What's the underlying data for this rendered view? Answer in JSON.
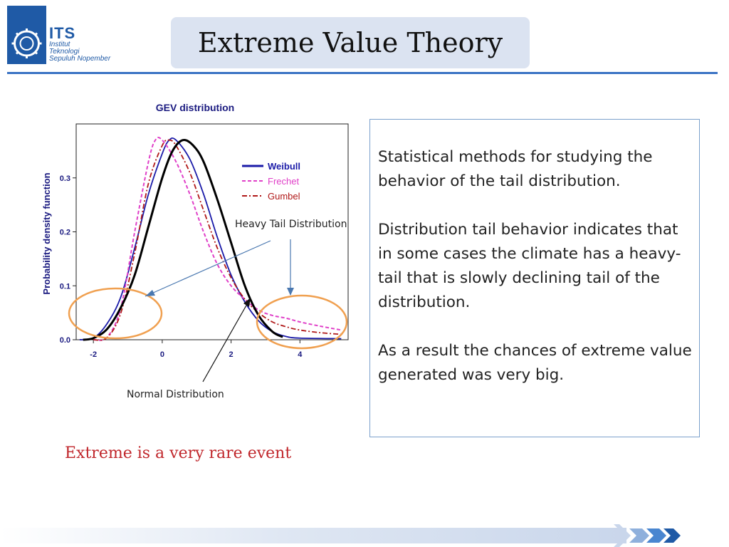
{
  "header": {
    "logo_short": "ITS",
    "logo_lines": [
      "Institut",
      "Teknologi",
      "Sepuluh Nopember"
    ],
    "title": "Extreme Value Theory"
  },
  "annotations": {
    "heavy_tail": "Heavy  Tail Distribution",
    "normal": "Normal Distribution"
  },
  "body_text": [
    "Statistical methods for studying the behavior of the tail distribution.",
    "Distribution tail behavior indicates that in some cases the climate has a heavy-tail that is slowly declining tail of the distribution.",
    "As a result the chances of extreme value generated was very big."
  ],
  "tagline": "Extreme is a very rare event",
  "colors": {
    "brand_blue": "#1f5aa6",
    "weibull": "#1a1aa8",
    "frechet": "#e040c8",
    "gumbel": "#b01818",
    "normal": "#000000",
    "circle": "#f0a050",
    "tagline": "#c0262b"
  },
  "chart_data": {
    "type": "line",
    "title": "GEV distribution",
    "xlabel": "",
    "ylabel": "Probability density function",
    "xlim": [
      -2.5,
      5.4
    ],
    "ylim": [
      0,
      0.4
    ],
    "x_ticks": [
      -2,
      0,
      2,
      4
    ],
    "y_ticks": [
      0.0,
      0.1,
      0.2,
      0.3
    ],
    "x_tick_labels": [
      "-2",
      "0",
      "2",
      "4"
    ],
    "y_tick_labels": [
      "0.0",
      "0.1",
      "0.2",
      "0.3"
    ],
    "grid": false,
    "legend": "top-right",
    "series": [
      {
        "name": "Weibull",
        "style": "solid",
        "points": [
          [
            -2.4,
            0.0
          ],
          [
            -2.0,
            0.003
          ],
          [
            -1.6,
            0.03
          ],
          [
            -1.2,
            0.08
          ],
          [
            -0.8,
            0.17
          ],
          [
            -0.4,
            0.27
          ],
          [
            0.0,
            0.345
          ],
          [
            0.2,
            0.37
          ],
          [
            0.4,
            0.37
          ],
          [
            0.8,
            0.335
          ],
          [
            1.2,
            0.27
          ],
          [
            1.6,
            0.19
          ],
          [
            2.0,
            0.12
          ],
          [
            2.4,
            0.07
          ],
          [
            2.8,
            0.035
          ],
          [
            3.2,
            0.015
          ],
          [
            3.6,
            0.006
          ],
          [
            4.0,
            0.003
          ],
          [
            5.2,
            0.002
          ]
        ]
      },
      {
        "name": "Frechet",
        "style": "dashed",
        "points": [
          [
            -2.0,
            0.0
          ],
          [
            -1.6,
            0.005
          ],
          [
            -1.2,
            0.06
          ],
          [
            -0.8,
            0.2
          ],
          [
            -0.4,
            0.33
          ],
          [
            -0.2,
            0.37
          ],
          [
            0.0,
            0.37
          ],
          [
            0.4,
            0.33
          ],
          [
            0.8,
            0.27
          ],
          [
            1.2,
            0.2
          ],
          [
            1.6,
            0.14
          ],
          [
            2.0,
            0.1
          ],
          [
            2.4,
            0.075
          ],
          [
            2.8,
            0.055
          ],
          [
            3.2,
            0.045
          ],
          [
            3.6,
            0.04
          ],
          [
            4.0,
            0.033
          ],
          [
            4.6,
            0.025
          ],
          [
            5.2,
            0.018
          ]
        ]
      },
      {
        "name": "Gumbel",
        "style": "dashdot",
        "points": [
          [
            -2.0,
            0.0
          ],
          [
            -1.6,
            0.004
          ],
          [
            -1.2,
            0.05
          ],
          [
            -0.8,
            0.16
          ],
          [
            -0.4,
            0.29
          ],
          [
            0.0,
            0.36
          ],
          [
            0.2,
            0.37
          ],
          [
            0.4,
            0.36
          ],
          [
            0.8,
            0.31
          ],
          [
            1.2,
            0.24
          ],
          [
            1.6,
            0.17
          ],
          [
            2.0,
            0.115
          ],
          [
            2.4,
            0.075
          ],
          [
            2.8,
            0.05
          ],
          [
            3.2,
            0.033
          ],
          [
            3.6,
            0.024
          ],
          [
            4.0,
            0.018
          ],
          [
            4.6,
            0.013
          ],
          [
            5.2,
            0.01
          ]
        ]
      },
      {
        "style": "solid-thick",
        "points": [
          [
            -2.3,
            0.0
          ],
          [
            -2.0,
            0.003
          ],
          [
            -1.6,
            0.02
          ],
          [
            -1.2,
            0.06
          ],
          [
            -0.8,
            0.12
          ],
          [
            -0.4,
            0.21
          ],
          [
            0.0,
            0.3
          ],
          [
            0.3,
            0.35
          ],
          [
            0.6,
            0.37
          ],
          [
            0.9,
            0.36
          ],
          [
            1.2,
            0.33
          ],
          [
            1.6,
            0.26
          ],
          [
            2.0,
            0.18
          ],
          [
            2.4,
            0.1
          ],
          [
            2.8,
            0.045
          ],
          [
            3.2,
            0.015
          ],
          [
            3.5,
            0.005
          ]
        ]
      }
    ]
  }
}
